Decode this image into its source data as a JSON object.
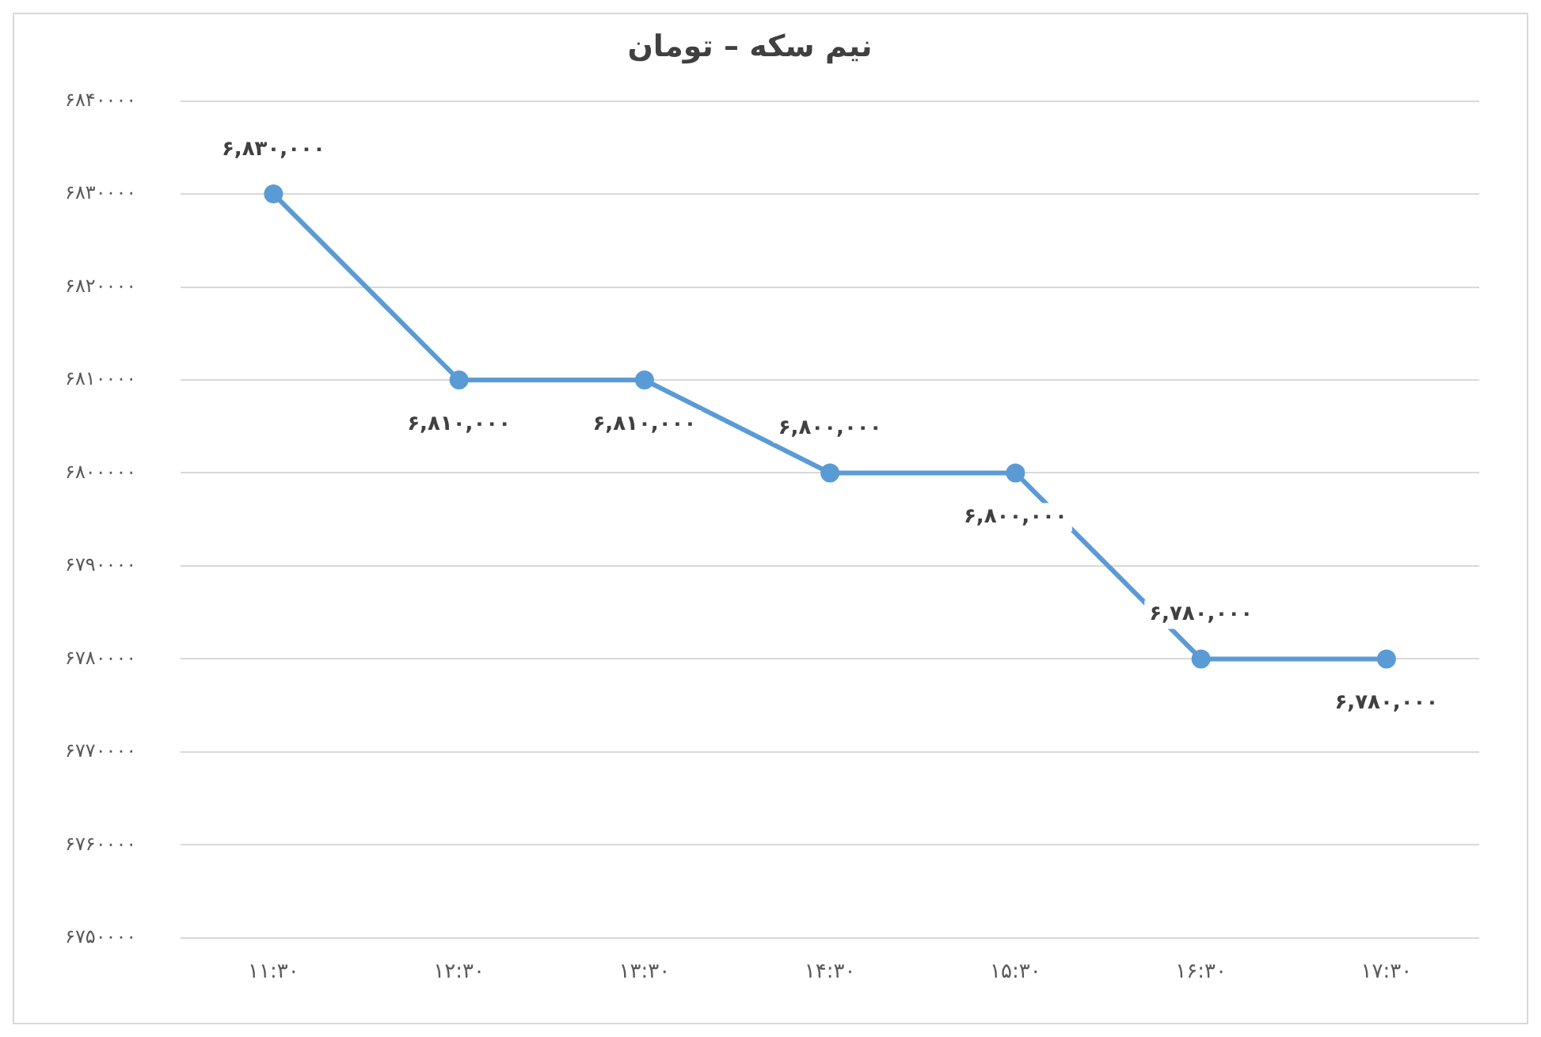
{
  "chart_data": {
    "type": "line",
    "title": "نیم سکه – تومان",
    "categories": [
      "۱۱:۳۰",
      "۱۲:۳۰",
      "۱۳:۳۰",
      "۱۴:۳۰",
      "۱۵:۳۰",
      "۱۶:۳۰",
      "۱۷:۳۰"
    ],
    "series": [
      {
        "color": "#5b9bd5",
        "values": [
          6830000,
          6810000,
          6810000,
          6800000,
          6800000,
          6780000,
          6780000
        ],
        "value_labels": [
          "۶,۸۳۰,۰۰۰",
          "۶,۸۱۰,۰۰۰",
          "۶,۸۱۰,۰۰۰",
          "۶,۸۰۰,۰۰۰",
          "۶,۸۰۰,۰۰۰",
          "۶,۷۸۰,۰۰۰",
          "۶,۷۸۰,۰۰۰"
        ]
      }
    ],
    "ylim": [
      6750000,
      6840000
    ],
    "yticks": [
      {
        "value": 6750000,
        "label": "۶۷۵۰۰۰۰"
      },
      {
        "value": 6760000,
        "label": "۶۷۶۰۰۰۰"
      },
      {
        "value": 6770000,
        "label": "۶۷۷۰۰۰۰"
      },
      {
        "value": 6780000,
        "label": "۶۷۸۰۰۰۰"
      },
      {
        "value": 6790000,
        "label": "۶۷۹۰۰۰۰"
      },
      {
        "value": 6800000,
        "label": "۶۸۰۰۰۰۰"
      },
      {
        "value": 6810000,
        "label": "۶۸۱۰۰۰۰"
      },
      {
        "value": 6820000,
        "label": "۶۸۲۰۰۰۰"
      },
      {
        "value": 6830000,
        "label": "۶۸۳۰۰۰۰"
      },
      {
        "value": 6840000,
        "label": "۶۸۴۰۰۰۰"
      }
    ],
    "grid": "y",
    "marker": "circle",
    "line_style": "solid",
    "legend": false
  }
}
